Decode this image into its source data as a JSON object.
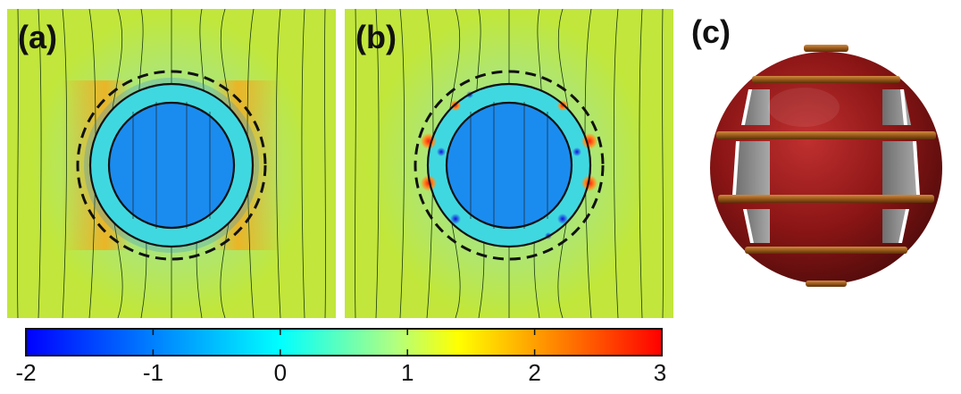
{
  "figure": {
    "panels": [
      {
        "label": "(a)"
      },
      {
        "label": "(b)"
      },
      {
        "label": "(c)"
      }
    ]
  },
  "colorbar": {
    "range": [
      -2,
      3
    ],
    "ticks": [
      "-2",
      "-1",
      "0",
      "1",
      "2",
      "3"
    ],
    "colors": [
      "#0000ff",
      "#0080ff",
      "#00ffff",
      "#b0ff80",
      "#ffff00",
      "#ff8000",
      "#ff0000"
    ]
  },
  "colors": {
    "background_field": "#c0e83a",
    "inner_core": "#1a8cf0",
    "shell_ring": "#40d8e0",
    "hot_side": "#f0a020",
    "sphere_red": "#8b1515",
    "band_gold": "#b06a20",
    "window_gray": "#8c8c8c"
  }
}
